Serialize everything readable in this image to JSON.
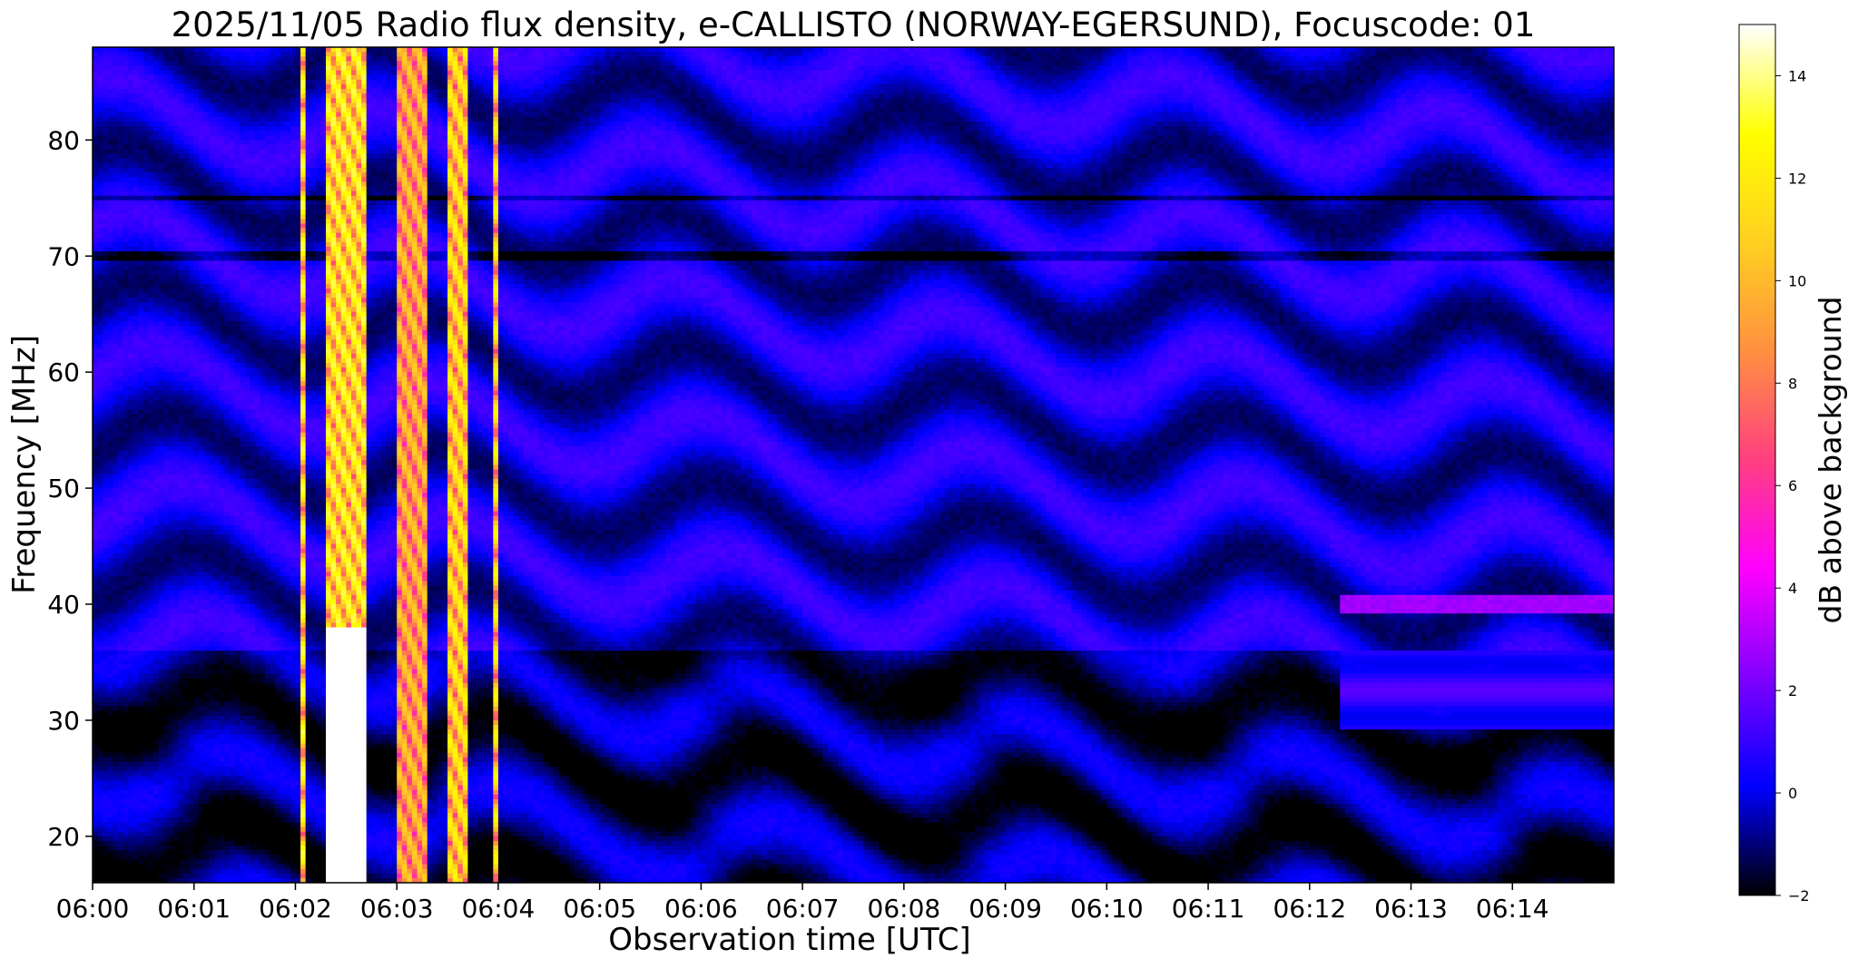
{
  "chart_data": {
    "type": "heatmap",
    "title": "2025/11/05  Radio flux density, e-CALLISTO (NORWAY-EGERSUND), Focuscode: 01",
    "xlabel": "Observation time [UTC]",
    "ylabel": "Frequency [MHz]",
    "x_range_minutes": [
      0,
      15
    ],
    "x_ticks": [
      {
        "minute": 0,
        "label": "06:00"
      },
      {
        "minute": 1,
        "label": "06:01"
      },
      {
        "minute": 2,
        "label": "06:02"
      },
      {
        "minute": 3,
        "label": "06:03"
      },
      {
        "minute": 4,
        "label": "06:04"
      },
      {
        "minute": 5,
        "label": "06:05"
      },
      {
        "minute": 6,
        "label": "06:06"
      },
      {
        "minute": 7,
        "label": "06:07"
      },
      {
        "minute": 8,
        "label": "06:08"
      },
      {
        "minute": 9,
        "label": "06:09"
      },
      {
        "minute": 10,
        "label": "06:10"
      },
      {
        "minute": 11,
        "label": "06:11"
      },
      {
        "minute": 12,
        "label": "06:12"
      },
      {
        "minute": 13,
        "label": "06:13"
      },
      {
        "minute": 14,
        "label": "06:14"
      }
    ],
    "ylim": [
      16,
      88
    ],
    "y_ticks": [
      20,
      30,
      40,
      50,
      60,
      70,
      80
    ],
    "colorbar": {
      "label": "dB above background",
      "range": [
        -2,
        15
      ],
      "ticks": [
        -2,
        0,
        2,
        4,
        6,
        8,
        10,
        12,
        14
      ],
      "colormap": [
        "#000000",
        "#0000ff",
        "#8000ff",
        "#ff00ff",
        "#ff4080",
        "#ff9040",
        "#ffd020",
        "#ffff00",
        "#ffffff"
      ]
    },
    "features": {
      "background_level_db": 0,
      "bursts": [
        {
          "start_min": 2.05,
          "end_min": 2.12,
          "peak_db": 15
        },
        {
          "start_min": 2.3,
          "end_min": 2.7,
          "peak_db": 15
        },
        {
          "start_min": 3.0,
          "end_min": 3.3,
          "peak_db": 12
        },
        {
          "start_min": 3.5,
          "end_min": 3.72,
          "peak_db": 14
        },
        {
          "start_min": 3.95,
          "end_min": 4.0,
          "peak_db": 14
        }
      ],
      "band_40mhz": {
        "start_min": 12.3,
        "end_min": 15,
        "freq_mhz": 40,
        "level_db": 2.5
      }
    }
  }
}
